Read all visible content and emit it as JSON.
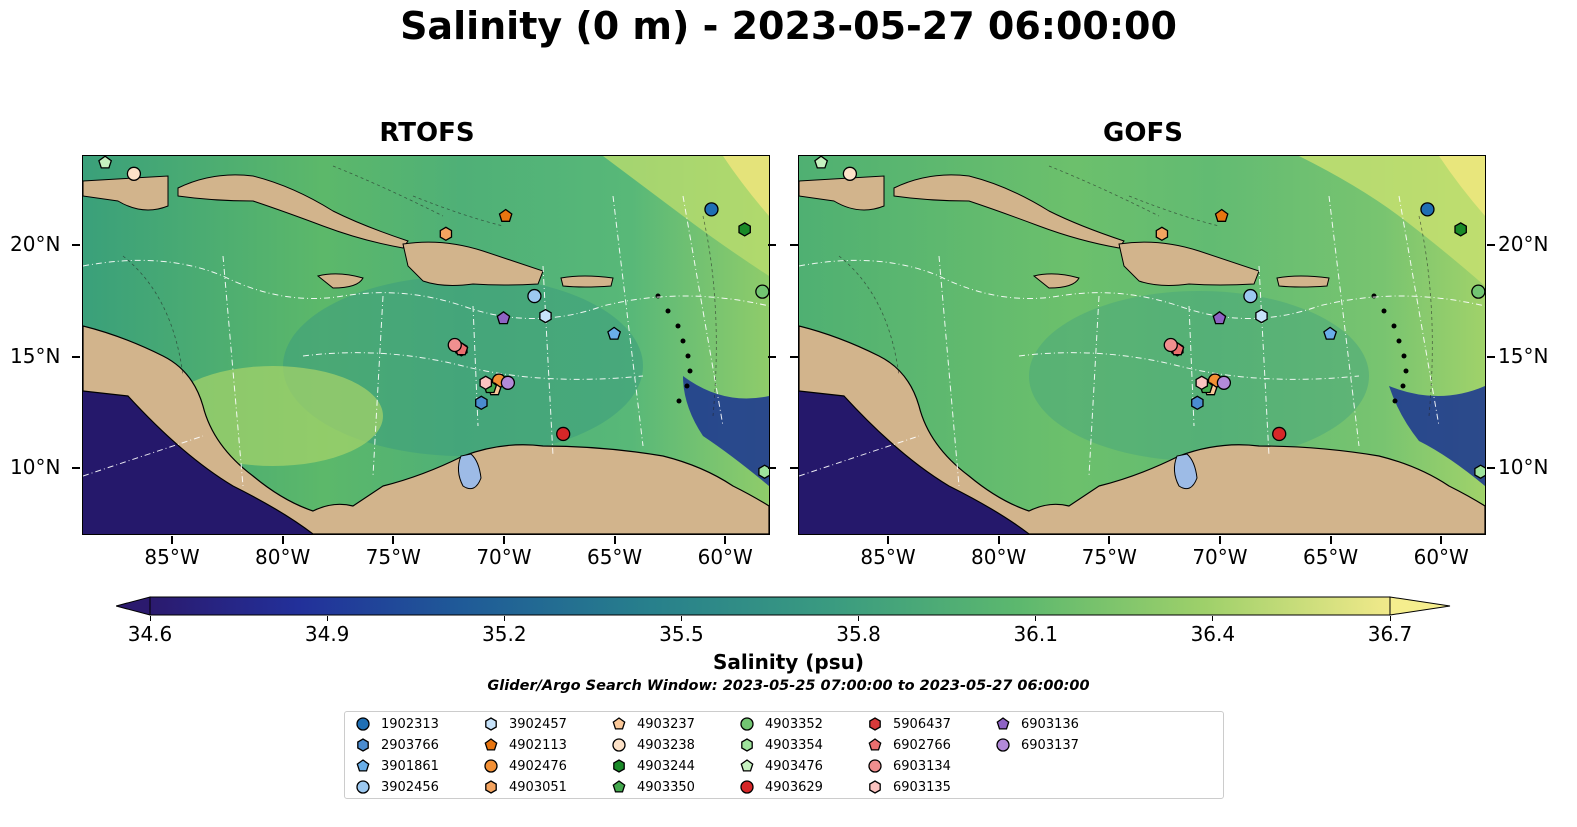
{
  "title": "Salinity (0 m) - 2023-05-27 06:00:00",
  "panels": [
    {
      "title": "RTOFS"
    },
    {
      "title": "GOFS"
    }
  ],
  "axes": {
    "x_ticks": [
      "85°W",
      "80°W",
      "75°W",
      "70°W",
      "65°W",
      "60°W"
    ],
    "y_ticks": [
      "20°N",
      "15°N",
      "10°N"
    ]
  },
  "colorbar": {
    "label": "Salinity (psu)",
    "ticks": [
      "34.6",
      "34.9",
      "35.2",
      "35.5",
      "35.8",
      "36.1",
      "36.4",
      "36.7"
    ],
    "min": 34.6,
    "max": 36.7,
    "colormap": "summer-to-deep-blue"
  },
  "search_window": "Glider/Argo Search Window: 2023-05-25 07:00:00 to 2023-05-27 06:00:00",
  "floats": [
    {
      "id": "1902313",
      "marker": "circle",
      "color": "#1f6fb4",
      "lon": -60.6,
      "lat": 21.6
    },
    {
      "id": "2903766",
      "marker": "hexagon",
      "color": "#4a8cd0",
      "lon": -71.0,
      "lat": 12.9
    },
    {
      "id": "3901861",
      "marker": "pentagon",
      "color": "#6aaee8",
      "lon": -65.0,
      "lat": 16.0
    },
    {
      "id": "3902456",
      "marker": "circle",
      "color": "#9cc8f0",
      "lon": -68.6,
      "lat": 17.7
    },
    {
      "id": "3902457",
      "marker": "hexagon",
      "color": "#c7e3fa",
      "lon": -68.1,
      "lat": 16.8
    },
    {
      "id": "4902113",
      "marker": "pentagon",
      "color": "#e87510",
      "lon": -69.9,
      "lat": 21.3
    },
    {
      "id": "4902476",
      "marker": "circle",
      "color": "#f39035",
      "lon": -70.2,
      "lat": 13.9
    },
    {
      "id": "4903051",
      "marker": "hexagon",
      "color": "#f4a460",
      "lon": -72.6,
      "lat": 20.5
    },
    {
      "id": "4903237",
      "marker": "pentagon",
      "color": "#fbc99a",
      "lon": -70.4,
      "lat": 13.5
    },
    {
      "id": "4903238",
      "marker": "circle",
      "color": "#fde2c8",
      "lon": -86.7,
      "lat": 23.2
    },
    {
      "id": "4903244",
      "marker": "hexagon",
      "color": "#1a8a28",
      "lon": -59.1,
      "lat": 20.7
    },
    {
      "id": "4903350",
      "marker": "pentagon",
      "color": "#44a84e",
      "lon": -70.6,
      "lat": 13.6
    },
    {
      "id": "4903352",
      "marker": "circle",
      "color": "#72c572",
      "lon": -58.3,
      "lat": 17.9
    },
    {
      "id": "4903354",
      "marker": "hexagon",
      "color": "#9ee39c",
      "lon": -58.2,
      "lat": 9.8
    },
    {
      "id": "4903476",
      "marker": "pentagon",
      "color": "#c6f2c0",
      "lon": -88.0,
      "lat": 23.7
    },
    {
      "id": "4903629",
      "marker": "circle",
      "color": "#d62728",
      "lon": -67.3,
      "lat": 11.5
    },
    {
      "id": "5906437",
      "marker": "hexagon",
      "color": "#d83a3a",
      "lon": -71.9,
      "lat": 15.3
    },
    {
      "id": "6902766",
      "marker": "pentagon",
      "color": "#ea6f6f",
      "lon": -71.9,
      "lat": 15.3
    },
    {
      "id": "6903134",
      "marker": "circle",
      "color": "#f08f8f",
      "lon": -72.2,
      "lat": 15.5
    },
    {
      "id": "6903135",
      "marker": "hexagon",
      "color": "#fbc3c0",
      "lon": -70.8,
      "lat": 13.8
    },
    {
      "id": "6903136",
      "marker": "pentagon",
      "color": "#8e63c4",
      "lon": -70.0,
      "lat": 16.7
    },
    {
      "id": "6903137",
      "marker": "circle",
      "color": "#b28ad8",
      "lon": -69.8,
      "lat": 13.8
    }
  ]
}
